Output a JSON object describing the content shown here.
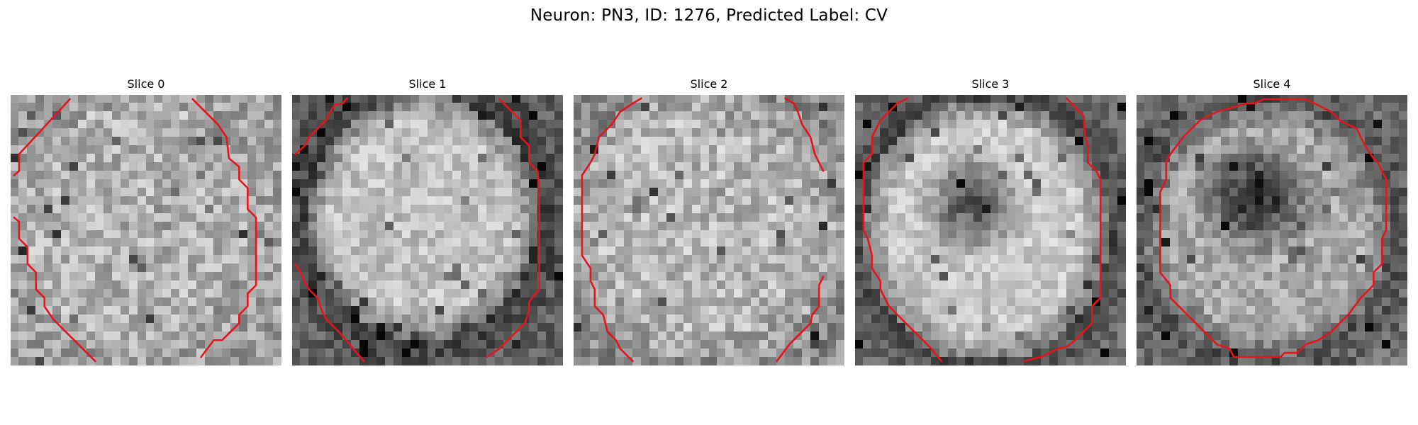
{
  "figure": {
    "title": "Neuron: PN3, ID: 1276, Predicted Label: CV"
  },
  "panels": [
    {
      "title": "Slice 0"
    },
    {
      "title": "Slice 1"
    },
    {
      "title": "Slice 2"
    },
    {
      "title": "Slice 3"
    },
    {
      "title": "Slice 4"
    }
  ],
  "colors": {
    "contour": "#e8141b",
    "background": "#ffffff",
    "colormap": "grayscale"
  }
}
